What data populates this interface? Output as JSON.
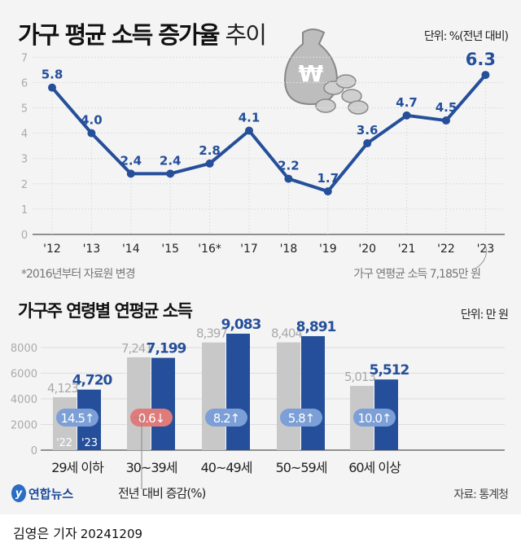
{
  "header": {
    "title_bold": "가구 평균 소득 증가율",
    "title_light": "추이",
    "unit": "단위: %(전년 대비)"
  },
  "chart_data": [
    {
      "type": "line",
      "title": "가구 평균 소득 증가율 추이",
      "unit": "단위: %(전년 대비)",
      "categories": [
        "'12",
        "'13",
        "'14",
        "'15",
        "'16*",
        "'17",
        "'18",
        "'19",
        "'20",
        "'21",
        "'22",
        "'23"
      ],
      "values": [
        5.8,
        4.0,
        2.4,
        2.4,
        2.8,
        4.1,
        2.2,
        1.7,
        3.6,
        4.7,
        4.5,
        6.3
      ],
      "value_labels": [
        "5.8",
        "4.0",
        "2.4",
        "2.4",
        "2.8",
        "4.1",
        "2.2",
        "1.7",
        "3.6",
        "4.7",
        "4.5",
        "6.3"
      ],
      "ylim": [
        0,
        7
      ],
      "yticks": [
        "0",
        "1",
        "2",
        "3",
        "4",
        "5",
        "6",
        "7"
      ],
      "grid": true,
      "color": "#254f9a",
      "footnote": "*2016년부터 자료원 변경",
      "annotation": "가구 연평균 소득 7,185만 원"
    },
    {
      "type": "bar",
      "title": "가구주 연령별 연평균 소득",
      "unit": "단위: 만 원",
      "categories": [
        "29세 이하",
        "30~39세",
        "40~49세",
        "50~59세",
        "60세 이상"
      ],
      "series": [
        {
          "name": "'22",
          "values": [
            4123,
            7241,
            8397,
            8404,
            5013
          ],
          "labels": [
            "4,123",
            "7,241",
            "8,397",
            "8,404",
            "5,013"
          ],
          "color": "#c8c8c8"
        },
        {
          "name": "'23",
          "values": [
            4720,
            7199,
            9083,
            8891,
            5512
          ],
          "labels": [
            "4,720",
            "7,199",
            "9,083",
            "8,891",
            "5,512"
          ],
          "color": "#254f9a"
        }
      ],
      "change_labels": [
        "14.5↑",
        "0.6↓",
        "8.2↑",
        "5.8↑",
        "10.0↑"
      ],
      "change_colors": [
        "#7b9fd6",
        "#e07b7b",
        "#7b9fd6",
        "#7b9fd6",
        "#7b9fd6"
      ],
      "ylim": [
        0,
        9500
      ],
      "yticks": [
        "0",
        "2000",
        "4000",
        "6000",
        "8000"
      ],
      "grid": true,
      "annotation": "전년 대비 증감(%)"
    }
  ],
  "section2": {
    "title": "가구주 연령별 연평균 소득",
    "unit": "단위: 만 원"
  },
  "footer": {
    "logo": "연합뉴스",
    "source": "자료: 통계청",
    "reporter": "김영은 기자",
    "date": "20241209"
  },
  "icons": [
    "money-bag-icon",
    "coins-icon"
  ]
}
